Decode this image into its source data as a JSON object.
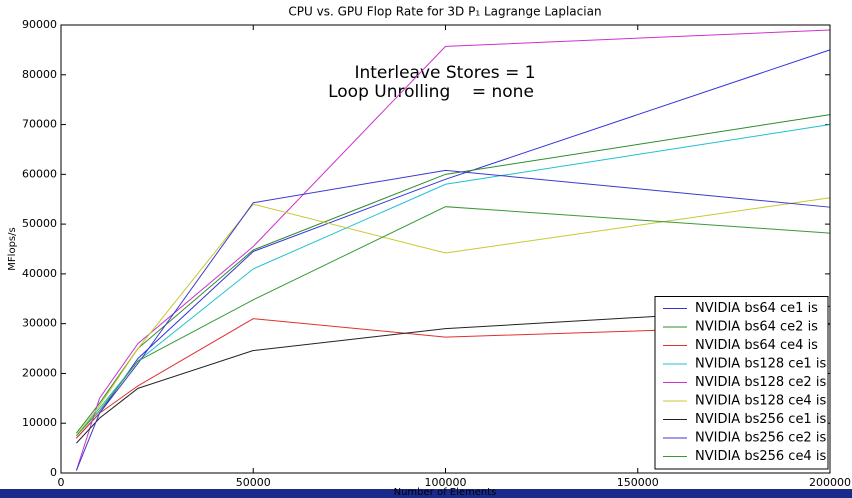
{
  "chart_data": {
    "type": "line",
    "title": "CPU vs. GPU Flop Rate for 3D P₁ Lagrange Laplacian",
    "x_label": "Number of Elements",
    "y_label": "MFlops/s",
    "annotations": [
      "Interleave Stores = 1",
      "Loop Unrolling    = none"
    ],
    "x": [
      4000,
      10000,
      20000,
      50000,
      100000,
      200000
    ],
    "series": [
      {
        "name": "NVIDIA bs64 ce1 is",
        "color": "#3333dd",
        "values": [
          7000,
          12000,
          23000,
          44500,
          59000,
          85000
        ]
      },
      {
        "name": "NVIDIA bs64 ce2 is",
        "color": "#2e8b2e",
        "values": [
          8000,
          14000,
          25000,
          44800,
          60000,
          72000
        ]
      },
      {
        "name": "NVIDIA bs64 ce4 is",
        "color": "#e03030",
        "values": [
          7000,
          12000,
          17500,
          31000,
          27300,
          29800
        ]
      },
      {
        "name": "NVIDIA bs128 ce1 is",
        "color": "#20c0d0",
        "values": [
          7500,
          13000,
          22500,
          41000,
          58000,
          70000
        ]
      },
      {
        "name": "NVIDIA bs128 ce2 is",
        "color": "#cc33cc",
        "values": [
          500,
          15000,
          26000,
          45500,
          85700,
          89000
        ]
      },
      {
        "name": "NVIDIA bs128 ce4 is",
        "color": "#c8c830",
        "values": [
          7500,
          13500,
          25000,
          54000,
          44200,
          55300
        ]
      },
      {
        "name": "NVIDIA bs256 ce1 is",
        "color": "#222222",
        "values": [
          6000,
          11000,
          17000,
          24600,
          29000,
          33500
        ]
      },
      {
        "name": "NVIDIA bs256 ce2 is",
        "color": "#3a3ad0",
        "values": [
          500,
          12000,
          22000,
          54300,
          60800,
          53400
        ]
      },
      {
        "name": "NVIDIA bs256 ce4 is",
        "color": "#3a9a3a",
        "values": [
          7500,
          12500,
          22500,
          34800,
          53500,
          48200
        ]
      }
    ],
    "xlim": [
      0,
      200000
    ],
    "xticks": [
      0,
      50000,
      100000,
      150000,
      200000
    ],
    "ylim": [
      0,
      90000
    ],
    "yticks": [
      0,
      10000,
      20000,
      30000,
      40000,
      50000,
      60000,
      70000,
      80000,
      90000
    ],
    "legend": "lower right"
  }
}
